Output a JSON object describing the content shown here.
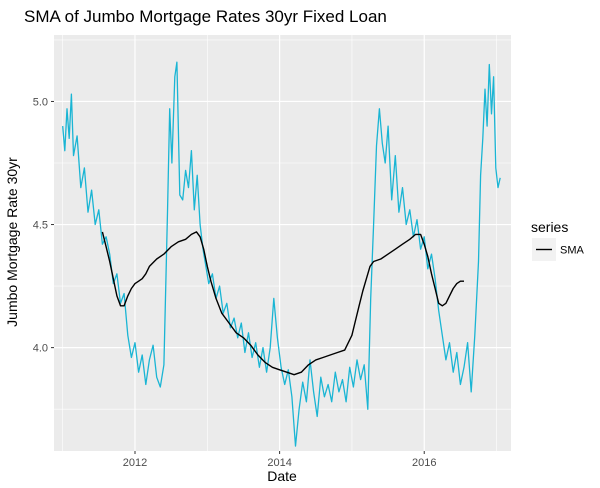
{
  "chart_data": {
    "type": "line",
    "title": "SMA of Jumbo Mortgage Rates 30yr Fixed Loan",
    "xlabel": "Date",
    "ylabel": "Jumbo Mortgage Rate 30yr",
    "xlim": [
      2010.88,
      2017.2
    ],
    "ylim": [
      3.58,
      5.27
    ],
    "x_ticks": [
      {
        "value": 2012,
        "label": "2012"
      },
      {
        "value": 2014,
        "label": "2014"
      },
      {
        "value": 2016,
        "label": "2016"
      }
    ],
    "y_ticks": [
      {
        "value": 4.0,
        "label": "4.0"
      },
      {
        "value": 4.5,
        "label": "4.5"
      },
      {
        "value": 5.0,
        "label": "5.0"
      }
    ],
    "grid": true,
    "legend": {
      "title": "series",
      "position": "right",
      "entries": [
        {
          "label": "SMA",
          "color": "#000000"
        }
      ]
    },
    "colors": {
      "rate": "#1ab5d4",
      "sma": "#000000",
      "panel": "#ebebeb",
      "grid": "#ffffff"
    },
    "series": [
      {
        "role": "rate",
        "points": [
          [
            2011.0,
            4.9
          ],
          [
            2011.03,
            4.8
          ],
          [
            2011.06,
            4.97
          ],
          [
            2011.09,
            4.85
          ],
          [
            2011.12,
            5.03
          ],
          [
            2011.15,
            4.78
          ],
          [
            2011.2,
            4.86
          ],
          [
            2011.25,
            4.65
          ],
          [
            2011.3,
            4.73
          ],
          [
            2011.35,
            4.55
          ],
          [
            2011.4,
            4.64
          ],
          [
            2011.45,
            4.5
          ],
          [
            2011.5,
            4.56
          ],
          [
            2011.55,
            4.42
          ],
          [
            2011.6,
            4.45
          ],
          [
            2011.65,
            4.38
          ],
          [
            2011.7,
            4.26
          ],
          [
            2011.75,
            4.3
          ],
          [
            2011.8,
            4.18
          ],
          [
            2011.85,
            4.22
          ],
          [
            2011.9,
            4.05
          ],
          [
            2011.95,
            3.96
          ],
          [
            2012.0,
            4.02
          ],
          [
            2012.05,
            3.9
          ],
          [
            2012.1,
            3.97
          ],
          [
            2012.15,
            3.85
          ],
          [
            2012.2,
            3.95
          ],
          [
            2012.25,
            4.01
          ],
          [
            2012.3,
            3.88
          ],
          [
            2012.35,
            3.84
          ],
          [
            2012.4,
            3.93
          ],
          [
            2012.45,
            4.55
          ],
          [
            2012.48,
            4.97
          ],
          [
            2012.51,
            4.75
          ],
          [
            2012.55,
            5.1
          ],
          [
            2012.58,
            5.16
          ],
          [
            2012.62,
            4.62
          ],
          [
            2012.66,
            4.6
          ],
          [
            2012.7,
            4.72
          ],
          [
            2012.74,
            4.65
          ],
          [
            2012.78,
            4.8
          ],
          [
            2012.82,
            4.56
          ],
          [
            2012.86,
            4.7
          ],
          [
            2012.9,
            4.5
          ],
          [
            2012.94,
            4.4
          ],
          [
            2012.98,
            4.33
          ],
          [
            2013.02,
            4.26
          ],
          [
            2013.07,
            4.3
          ],
          [
            2013.12,
            4.2
          ],
          [
            2013.17,
            4.25
          ],
          [
            2013.22,
            4.14
          ],
          [
            2013.27,
            4.18
          ],
          [
            2013.32,
            4.08
          ],
          [
            2013.37,
            4.12
          ],
          [
            2013.42,
            4.04
          ],
          [
            2013.47,
            4.1
          ],
          [
            2013.52,
            3.98
          ],
          [
            2013.57,
            4.06
          ],
          [
            2013.62,
            3.96
          ],
          [
            2013.67,
            4.02
          ],
          [
            2013.72,
            3.92
          ],
          [
            2013.77,
            4.0
          ],
          [
            2013.82,
            3.9
          ],
          [
            2013.87,
            4.0
          ],
          [
            2013.92,
            4.2
          ],
          [
            2013.97,
            4.04
          ],
          [
            2014.02,
            3.92
          ],
          [
            2014.07,
            3.85
          ],
          [
            2014.12,
            3.91
          ],
          [
            2014.17,
            3.8
          ],
          [
            2014.22,
            3.6
          ],
          [
            2014.27,
            3.75
          ],
          [
            2014.32,
            3.86
          ],
          [
            2014.37,
            3.78
          ],
          [
            2014.42,
            3.95
          ],
          [
            2014.47,
            3.82
          ],
          [
            2014.52,
            3.72
          ],
          [
            2014.57,
            3.88
          ],
          [
            2014.62,
            3.8
          ],
          [
            2014.67,
            3.85
          ],
          [
            2014.72,
            3.78
          ],
          [
            2014.77,
            3.9
          ],
          [
            2014.82,
            3.82
          ],
          [
            2014.87,
            3.87
          ],
          [
            2014.92,
            3.78
          ],
          [
            2014.97,
            3.92
          ],
          [
            2015.02,
            3.84
          ],
          [
            2015.07,
            3.95
          ],
          [
            2015.12,
            3.87
          ],
          [
            2015.17,
            3.93
          ],
          [
            2015.22,
            3.75
          ],
          [
            2015.26,
            4.2
          ],
          [
            2015.3,
            4.5
          ],
          [
            2015.34,
            4.82
          ],
          [
            2015.38,
            4.97
          ],
          [
            2015.42,
            4.83
          ],
          [
            2015.46,
            4.75
          ],
          [
            2015.5,
            4.9
          ],
          [
            2015.55,
            4.6
          ],
          [
            2015.6,
            4.78
          ],
          [
            2015.65,
            4.55
          ],
          [
            2015.7,
            4.65
          ],
          [
            2015.75,
            4.5
          ],
          [
            2015.8,
            4.56
          ],
          [
            2015.85,
            4.45
          ],
          [
            2015.9,
            4.52
          ],
          [
            2015.95,
            4.4
          ],
          [
            2016.0,
            4.45
          ],
          [
            2016.05,
            4.32
          ],
          [
            2016.1,
            4.38
          ],
          [
            2016.15,
            4.28
          ],
          [
            2016.2,
            4.15
          ],
          [
            2016.25,
            4.05
          ],
          [
            2016.3,
            3.95
          ],
          [
            2016.35,
            4.02
          ],
          [
            2016.4,
            3.9
          ],
          [
            2016.45,
            3.98
          ],
          [
            2016.5,
            3.85
          ],
          [
            2016.55,
            3.92
          ],
          [
            2016.6,
            4.02
          ],
          [
            2016.65,
            3.82
          ],
          [
            2016.7,
            4.05
          ],
          [
            2016.75,
            4.35
          ],
          [
            2016.78,
            4.7
          ],
          [
            2016.81,
            4.85
          ],
          [
            2016.84,
            5.05
          ],
          [
            2016.87,
            4.9
          ],
          [
            2016.9,
            5.15
          ],
          [
            2016.93,
            4.95
          ],
          [
            2016.96,
            5.1
          ],
          [
            2016.99,
            4.73
          ],
          [
            2017.02,
            4.65
          ],
          [
            2017.05,
            4.69
          ]
        ]
      },
      {
        "role": "sma",
        "name": "SMA",
        "points": [
          [
            2011.55,
            4.47
          ],
          [
            2011.6,
            4.41
          ],
          [
            2011.65,
            4.35
          ],
          [
            2011.7,
            4.28
          ],
          [
            2011.75,
            4.21
          ],
          [
            2011.8,
            4.17
          ],
          [
            2011.85,
            4.17
          ],
          [
            2011.9,
            4.21
          ],
          [
            2011.95,
            4.24
          ],
          [
            2012.0,
            4.26
          ],
          [
            2012.05,
            4.27
          ],
          [
            2012.1,
            4.28
          ],
          [
            2012.15,
            4.3
          ],
          [
            2012.2,
            4.33
          ],
          [
            2012.3,
            4.36
          ],
          [
            2012.4,
            4.38
          ],
          [
            2012.5,
            4.41
          ],
          [
            2012.6,
            4.43
          ],
          [
            2012.7,
            4.44
          ],
          [
            2012.78,
            4.46
          ],
          [
            2012.85,
            4.47
          ],
          [
            2012.9,
            4.45
          ],
          [
            2012.95,
            4.4
          ],
          [
            2013.0,
            4.33
          ],
          [
            2013.05,
            4.27
          ],
          [
            2013.12,
            4.2
          ],
          [
            2013.2,
            4.14
          ],
          [
            2013.3,
            4.1
          ],
          [
            2013.4,
            4.06
          ],
          [
            2013.5,
            4.04
          ],
          [
            2013.6,
            4.01
          ],
          [
            2013.7,
            3.97
          ],
          [
            2013.8,
            3.94
          ],
          [
            2013.9,
            3.92
          ],
          [
            2014.0,
            3.91
          ],
          [
            2014.1,
            3.9
          ],
          [
            2014.2,
            3.89
          ],
          [
            2014.3,
            3.9
          ],
          [
            2014.4,
            3.93
          ],
          [
            2014.5,
            3.95
          ],
          [
            2014.6,
            3.96
          ],
          [
            2014.7,
            3.97
          ],
          [
            2014.8,
            3.98
          ],
          [
            2014.9,
            3.99
          ],
          [
            2015.0,
            4.05
          ],
          [
            2015.05,
            4.11
          ],
          [
            2015.1,
            4.17
          ],
          [
            2015.15,
            4.23
          ],
          [
            2015.2,
            4.28
          ],
          [
            2015.25,
            4.33
          ],
          [
            2015.3,
            4.35
          ],
          [
            2015.4,
            4.36
          ],
          [
            2015.5,
            4.38
          ],
          [
            2015.6,
            4.4
          ],
          [
            2015.7,
            4.42
          ],
          [
            2015.8,
            4.44
          ],
          [
            2015.88,
            4.46
          ],
          [
            2015.95,
            4.46
          ],
          [
            2016.0,
            4.42
          ],
          [
            2016.05,
            4.37
          ],
          [
            2016.1,
            4.3
          ],
          [
            2016.15,
            4.24
          ],
          [
            2016.2,
            4.18
          ],
          [
            2016.25,
            4.17
          ],
          [
            2016.3,
            4.18
          ],
          [
            2016.35,
            4.21
          ],
          [
            2016.4,
            4.24
          ],
          [
            2016.45,
            4.26
          ],
          [
            2016.5,
            4.27
          ],
          [
            2016.55,
            4.27
          ]
        ]
      }
    ]
  }
}
